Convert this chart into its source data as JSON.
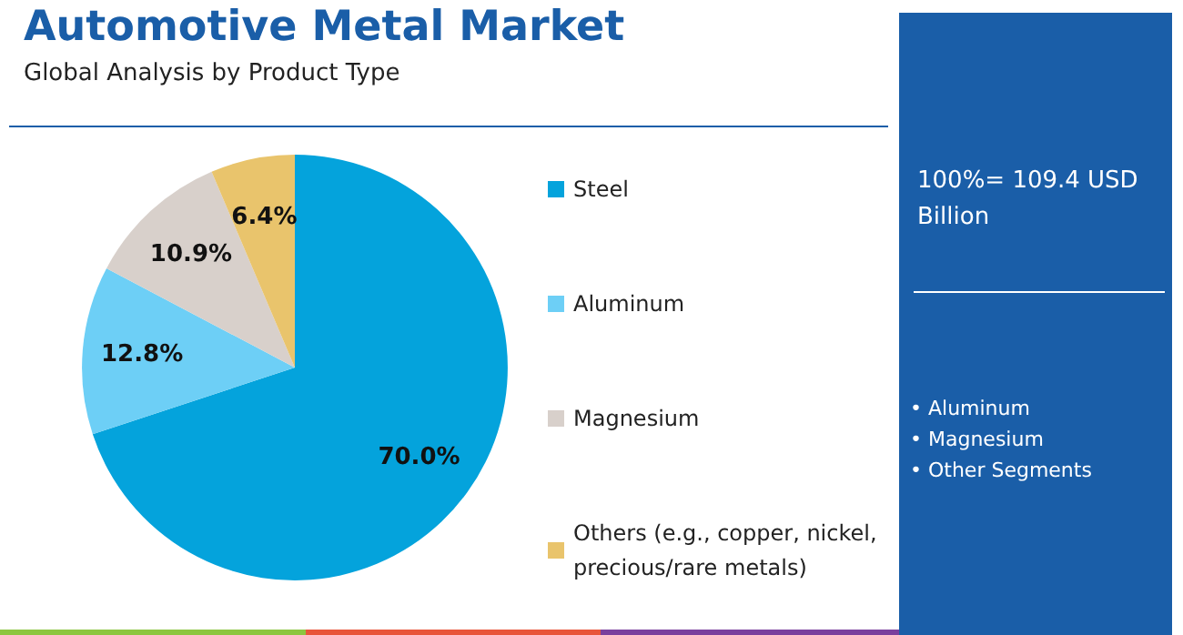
{
  "chart_data": {
    "type": "pie",
    "title": "Automotive Metal Market",
    "subtitle": "Global Analysis by Product Type",
    "categories": [
      "Steel",
      "Aluminum",
      "Magnesium",
      "Others (e.g., copper, nickel, precious/rare metals)"
    ],
    "values": [
      70.0,
      12.8,
      10.9,
      6.4
    ],
    "value_labels": [
      "70.0%",
      "12.8%",
      "10.9%",
      "6.4%"
    ],
    "colors": [
      "#04a3dc",
      "#6dcff6",
      "#d8d0cb",
      "#e9c46c"
    ],
    "legend": "right",
    "annotations": [
      "100%= 109.4 USD Billion",
      "• Aluminum",
      "• Magnesium",
      "• Other Segments"
    ]
  }
}
